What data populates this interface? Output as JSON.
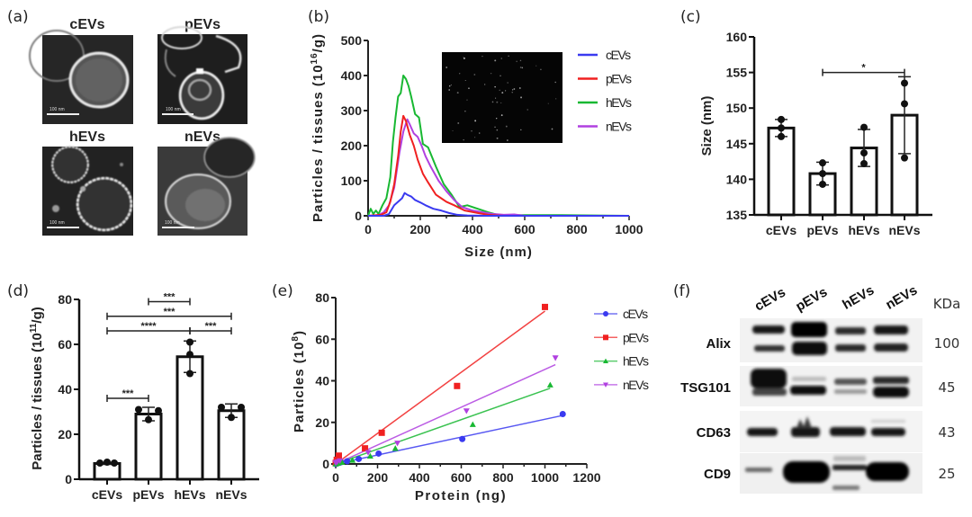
{
  "figure": {
    "panel_labels": [
      "(a)",
      "(b)",
      "(c)",
      "(d)",
      "(e)",
      "(f)"
    ]
  },
  "tem_panel": {
    "titles": [
      "cEVs",
      "pEVs",
      "hEVs",
      "nEVs"
    ],
    "scale_bar_label": "100 nm"
  },
  "chart_data": [
    {
      "id": "b",
      "type": "line",
      "title": "",
      "xlabel": "Size (nm)",
      "ylabel": "Particles / tissues (10^16/g)",
      "ylabel_parts": {
        "main": "Particles / tissues (10",
        "sup": "16",
        "tail": "/g)"
      },
      "xlim": [
        0,
        1000
      ],
      "ylim": [
        0,
        500
      ],
      "xticks": [
        0,
        200,
        400,
        600,
        800,
        1000
      ],
      "yticks": [
        0,
        100,
        200,
        300,
        400,
        500
      ],
      "legend_position": "top-right",
      "inset": "nanoparticle tracking video frame",
      "series": [
        {
          "name": "cEVs",
          "color": "#3a3af0",
          "x": [
            0,
            60,
            80,
            100,
            115,
            130,
            140,
            150,
            165,
            180,
            200,
            220,
            250,
            280,
            310,
            340,
            380,
            450,
            600,
            1000
          ],
          "y": [
            0,
            0,
            5,
            30,
            40,
            50,
            65,
            60,
            55,
            45,
            38,
            30,
            20,
            15,
            8,
            3,
            1,
            0,
            0,
            0
          ]
        },
        {
          "name": "pEVs",
          "color": "#f02020",
          "x": [
            0,
            50,
            70,
            85,
            100,
            115,
            125,
            135,
            145,
            160,
            175,
            190,
            210,
            230,
            260,
            280,
            300,
            330,
            370,
            420,
            460,
            520,
            1000
          ],
          "y": [
            0,
            3,
            10,
            40,
            90,
            170,
            240,
            285,
            270,
            230,
            200,
            160,
            120,
            95,
            60,
            50,
            40,
            30,
            15,
            8,
            3,
            0,
            0
          ]
        },
        {
          "name": "hEVs",
          "color": "#18b832",
          "x": [
            0,
            10,
            20,
            30,
            40,
            55,
            70,
            85,
            95,
            105,
            115,
            125,
            135,
            145,
            155,
            165,
            180,
            195,
            210,
            230,
            260,
            290,
            320,
            350,
            380,
            420,
            460,
            500,
            560,
            740,
            1000
          ],
          "y": [
            0,
            20,
            5,
            15,
            5,
            30,
            50,
            110,
            210,
            280,
            340,
            350,
            400,
            390,
            370,
            340,
            290,
            280,
            205,
            195,
            140,
            90,
            60,
            25,
            30,
            20,
            10,
            2,
            2,
            2,
            0
          ]
        },
        {
          "name": "nEVs",
          "color": "#b040e0",
          "x": [
            0,
            40,
            60,
            80,
            100,
            120,
            135,
            150,
            160,
            175,
            190,
            205,
            220,
            240,
            270,
            300,
            330,
            360,
            400,
            440,
            480,
            520,
            560,
            600,
            1000
          ],
          "y": [
            0,
            2,
            10,
            30,
            80,
            180,
            240,
            275,
            260,
            235,
            225,
            200,
            170,
            140,
            100,
            70,
            45,
            25,
            15,
            10,
            5,
            3,
            4,
            0,
            0
          ]
        }
      ]
    },
    {
      "id": "c",
      "type": "bar",
      "title": "",
      "xlabel": "",
      "ylabel": "Size (nm)",
      "categories": [
        "cEVs",
        "pEVs",
        "hEVs",
        "nEVs"
      ],
      "values": [
        147.2,
        140.8,
        144.4,
        149.0
      ],
      "errors": [
        1.2,
        1.6,
        2.6,
        5.4
      ],
      "points": [
        [
          148.4,
          147.2,
          146.0
        ],
        [
          142.3,
          140.8,
          139.3
        ],
        [
          147.3,
          143.7,
          142.2
        ],
        [
          153.5,
          150.6,
          143.0
        ]
      ],
      "ylim": [
        135,
        160
      ],
      "yticks": [
        135,
        140,
        145,
        150,
        155,
        160
      ],
      "significance": [
        {
          "from": 1,
          "to": 3,
          "label": "*",
          "y": 155
        }
      ]
    },
    {
      "id": "d",
      "type": "bar",
      "title": "",
      "xlabel": "",
      "ylabel": "Particles / tissues (10^11/g)",
      "ylabel_parts": {
        "main": "Particles / tissues (10",
        "sup": "11",
        "tail": "/g)"
      },
      "categories": [
        "cEVs",
        "pEVs",
        "hEVs",
        "nEVs"
      ],
      "values": [
        7.0,
        29.0,
        54.5,
        30.5
      ],
      "errors": [
        0.4,
        3.0,
        7.0,
        3.0
      ],
      "points": [
        [
          7.2,
          7.6,
          7.2
        ],
        [
          31.0,
          26.5,
          30.5
        ],
        [
          61.0,
          55.5,
          47.0
        ],
        [
          32.0,
          27.5,
          32.0
        ]
      ],
      "ylim": [
        0,
        80
      ],
      "yticks": [
        0,
        20,
        40,
        60,
        80
      ],
      "significance": [
        {
          "from": 0,
          "to": 1,
          "label": "***",
          "y": 36
        },
        {
          "from": 0,
          "to": 2,
          "label": "****",
          "y": 66
        },
        {
          "from": 2,
          "to": 3,
          "label": "***",
          "y": 66
        },
        {
          "from": 0,
          "to": 3,
          "label": "***",
          "y": 72.5
        },
        {
          "from": 1,
          "to": 2,
          "label": "***",
          "y": 79
        }
      ]
    },
    {
      "id": "e",
      "type": "scatter",
      "title": "",
      "xlabel": "Protein (ng)",
      "ylabel": "Particles (10^8)",
      "ylabel_parts": {
        "main": "Particles (10",
        "sup": "8",
        "tail": ")"
      },
      "xlim": [
        0,
        1200
      ],
      "ylim": [
        0,
        80
      ],
      "xticks": [
        0,
        200,
        400,
        600,
        800,
        1000,
        1200
      ],
      "yticks": [
        0,
        20,
        40,
        60,
        80
      ],
      "legend_position": "right",
      "series": [
        {
          "name": "cEVs",
          "color": "#3a3af0",
          "marker": "circle",
          "x": [
            0,
            5,
            12,
            25,
            55,
            110,
            205,
            605,
            1085
          ],
          "y": [
            0,
            0.2,
            0.5,
            0.8,
            1.3,
            2.4,
            5.0,
            12.0,
            24.0
          ],
          "fit": {
            "x0": 0,
            "x1": 1085,
            "slope": 0.0215
          }
        },
        {
          "name": "pEVs",
          "color": "#f02020",
          "marker": "square",
          "x": [
            0,
            5,
            15,
            140,
            220,
            580,
            1000
          ],
          "y": [
            0.5,
            2.0,
            4.0,
            7.5,
            15.0,
            37.5,
            75.5
          ],
          "fit": {
            "x0": 0,
            "x1": 1000,
            "slope": 0.0735
          }
        },
        {
          "name": "hEVs",
          "color": "#18b832",
          "marker": "triangle-up",
          "x": [
            0,
            10,
            30,
            80,
            165,
            285,
            655,
            1025
          ],
          "y": [
            0,
            0.3,
            0.8,
            1.8,
            3.8,
            7.5,
            19.0,
            38.0
          ],
          "fit": {
            "x0": 0,
            "x1": 1025,
            "slope": 0.0355
          }
        },
        {
          "name": "nEVs",
          "color": "#b040e0",
          "marker": "triangle-down",
          "x": [
            0,
            8,
            20,
            155,
            295,
            625,
            1050
          ],
          "y": [
            0.5,
            1.0,
            1.5,
            5.5,
            10.0,
            25.5,
            51.0
          ],
          "fit": {
            "x0": 0,
            "x1": 1050,
            "slope": 0.0455
          }
        }
      ]
    }
  ],
  "western_blot": {
    "lanes": [
      "cEVs",
      "pEVs",
      "hEVs",
      "nEVs"
    ],
    "unit_label": "KDa",
    "rows": [
      {
        "protein": "Alix",
        "kda": "100"
      },
      {
        "protein": "TSG101",
        "kda": "45"
      },
      {
        "protein": "CD63",
        "kda": "43"
      },
      {
        "protein": "CD9",
        "kda": "25"
      }
    ]
  }
}
